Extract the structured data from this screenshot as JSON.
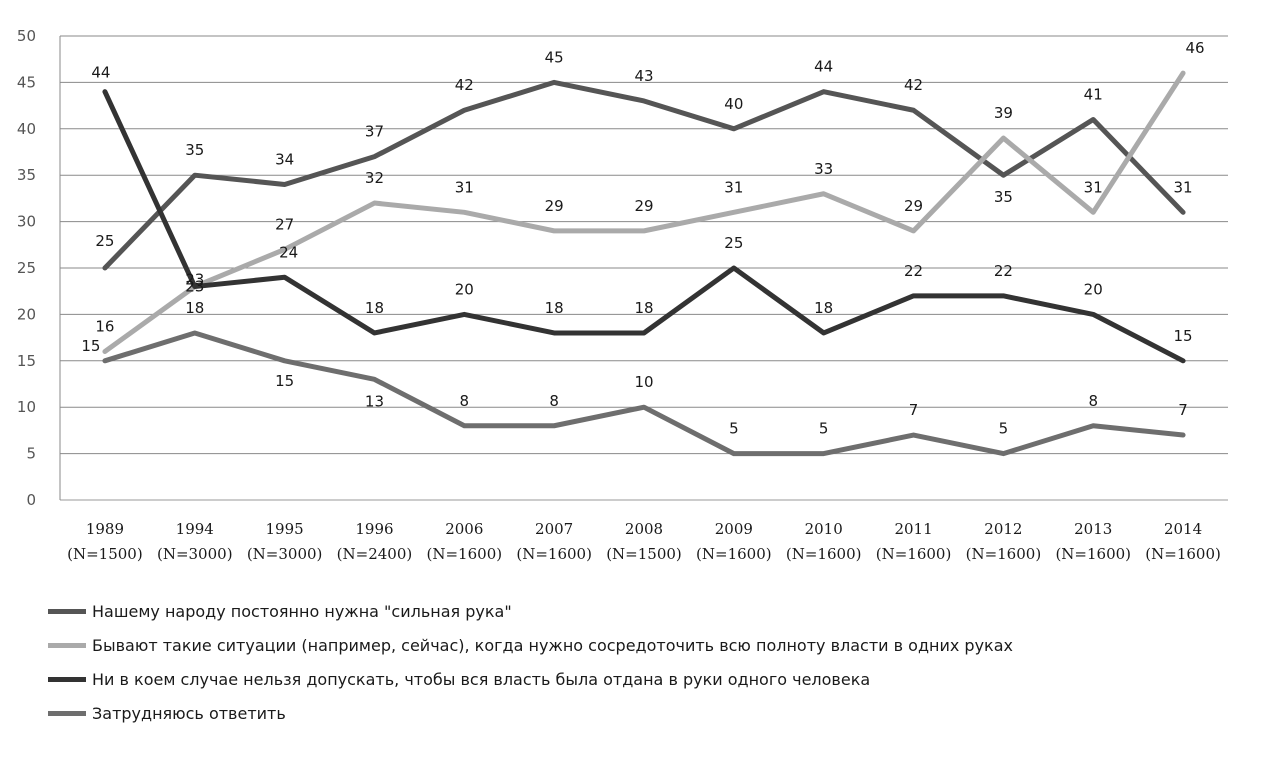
{
  "chart_data": {
    "type": "line",
    "categories": [
      "1989",
      "1994",
      "1995",
      "1996",
      "2006",
      "2007",
      "2008",
      "2009",
      "2010",
      "2011",
      "2012",
      "2013",
      "2014"
    ],
    "category_samples": [
      "(N=1500)",
      "(N=3000)",
      "(N=3000)",
      "(N=2400)",
      "(N=1600)",
      "(N=1600)",
      "(N=1500)",
      "(N=1600)",
      "(N=1600)",
      "(N=1600)",
      "(N=1600)",
      "(N=1600)",
      "(N=1600)"
    ],
    "ylim": [
      0,
      50
    ],
    "yticks": [
      "0",
      "5",
      "10",
      "15",
      "20",
      "25",
      "30",
      "35",
      "40",
      "45",
      "50"
    ],
    "grid": true,
    "legend_position": "bottom",
    "series": [
      {
        "name": "Нашему народу постоянно нужна \"сильная рука\"",
        "color": "#555555",
        "values": [
          25,
          35,
          34,
          37,
          42,
          45,
          43,
          40,
          44,
          42,
          35,
          41,
          31
        ]
      },
      {
        "name": "Бывают такие ситуации (например, сейчас), когда нужно сосредоточить всю полноту власти в одних руках",
        "color": "#aaaaaa",
        "values": [
          16,
          23,
          27,
          32,
          31,
          29,
          29,
          31,
          33,
          29,
          39,
          31,
          46
        ]
      },
      {
        "name": "Ни в коем случае нельзя допускать, чтобы вся власть была отдана в руки одного человека",
        "color": "#333333",
        "values": [
          44,
          23,
          24,
          18,
          20,
          18,
          18,
          25,
          18,
          22,
          22,
          20,
          15
        ]
      },
      {
        "name": "Затрудняюсь ответить",
        "color": "#6e6e6e",
        "values": [
          15,
          18,
          15,
          13,
          8,
          8,
          10,
          5,
          5,
          7,
          5,
          8,
          7
        ]
      }
    ]
  }
}
